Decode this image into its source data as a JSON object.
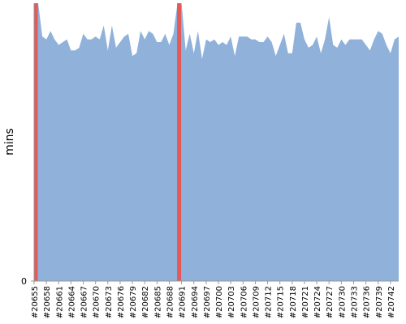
{
  "chart_data": {
    "type": "area",
    "y_label": "mins",
    "categories": [
      "#20655",
      null,
      null,
      "#20658",
      null,
      null,
      "#20661",
      null,
      null,
      "#20664",
      null,
      null,
      "#20667",
      null,
      null,
      "#20670",
      null,
      null,
      "#20673",
      null,
      null,
      "#20676",
      null,
      null,
      "#20679",
      null,
      null,
      "#20682",
      null,
      null,
      "#20685",
      null,
      null,
      "#20688",
      null,
      null,
      "#20691",
      null,
      null,
      "#20694",
      null,
      null,
      "#20697",
      null,
      null,
      "#20700",
      null,
      null,
      "#20703",
      null,
      null,
      "#20706",
      null,
      null,
      "#20709",
      null,
      null,
      "#20712",
      null,
      null,
      "#20715",
      null,
      null,
      "#20718",
      null,
      null,
      "#20721",
      null,
      null,
      "#20724",
      null,
      null,
      "#20727",
      null,
      null,
      "#20730",
      null,
      null,
      "#20733",
      null,
      null,
      "#20736",
      null,
      null,
      "#20739",
      null,
      null,
      "#20742",
      null,
      null
    ],
    "series": [
      {
        "color": "#8fb1da",
        "values": [
          10,
          10,
          8.8,
          8.7,
          9.0,
          8.7,
          8.5,
          8.6,
          8.7,
          8.3,
          8.3,
          8.4,
          8.9,
          8.7,
          8.7,
          8.8,
          8.7,
          9.2,
          8.3,
          9.2,
          8.4,
          8.6,
          8.8,
          8.9,
          8.1,
          8.2,
          9.0,
          8.7,
          9.0,
          8.9,
          8.6,
          8.6,
          8.9,
          8.5,
          8.9,
          10,
          10,
          8.3,
          8.9,
          8.2,
          9.0,
          8.0,
          8.7,
          8.6,
          8.7,
          8.5,
          8.6,
          8.5,
          8.8,
          8.1,
          8.8,
          8.8,
          8.8,
          8.7,
          8.7,
          8.6,
          8.6,
          8.8,
          8.6,
          8.1,
          8.5,
          8.9,
          8.2,
          8.2,
          9.3,
          9.3,
          8.7,
          8.4,
          8.5,
          8.8,
          8.2,
          8.7,
          9.5,
          8.5,
          8.4,
          8.7,
          8.5,
          8.7,
          8.7,
          8.7,
          8.7,
          8.5,
          8.3,
          8.7,
          9.0,
          8.9,
          8.5,
          8.2,
          8.7,
          8.8
        ]
      },
      {
        "color": "#e35a5a",
        "type": "bar",
        "values": [
          10,
          null,
          null,
          null,
          null,
          null,
          null,
          null,
          null,
          null,
          null,
          null,
          null,
          null,
          null,
          null,
          null,
          null,
          null,
          null,
          null,
          null,
          null,
          null,
          null,
          null,
          null,
          null,
          null,
          null,
          null,
          null,
          null,
          null,
          null,
          10,
          null,
          null,
          null,
          null,
          null,
          null,
          null,
          null,
          null,
          null,
          null,
          null,
          null,
          null,
          null,
          null,
          null,
          null,
          null,
          null,
          null,
          null,
          null,
          null,
          null,
          null,
          null,
          null,
          null,
          null,
          null,
          null,
          null,
          null,
          null,
          null,
          null,
          null,
          null,
          null,
          null,
          null,
          null,
          null,
          null,
          null,
          null,
          null,
          null,
          null,
          null,
          null,
          null,
          null
        ]
      }
    ],
    "ylim": [
      0,
      10
    ],
    "yticks": [
      0
    ]
  }
}
